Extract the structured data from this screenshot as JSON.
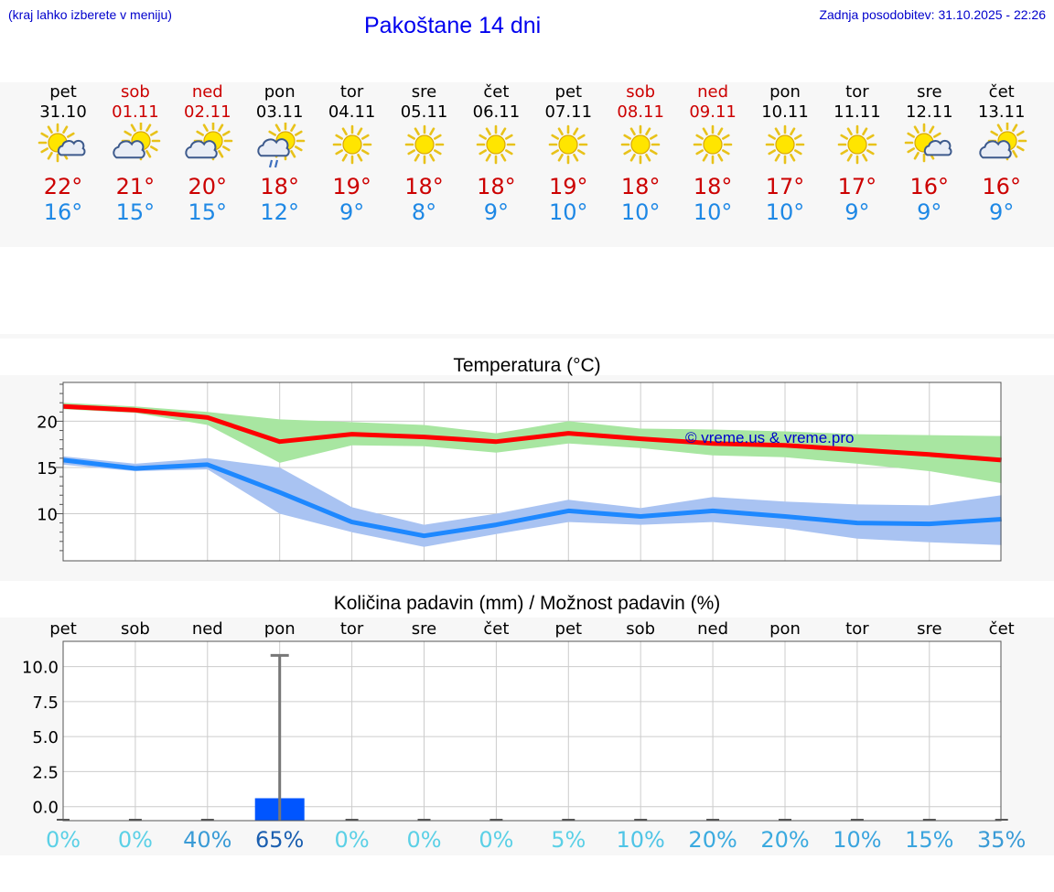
{
  "header": {
    "hint": "(kraj lahko izberete v meniju)",
    "title": "Pakoštane 14 dni",
    "updated": "Zadnja posodobitev: 31.10.2025 - 22:26"
  },
  "days": [
    {
      "name": "pet",
      "date": "31.10",
      "weekend": false,
      "icon": "sun-cloud-icon",
      "tmax": "22°",
      "tmin": "16°"
    },
    {
      "name": "sob",
      "date": "01.11",
      "weekend": true,
      "icon": "cloud-sun-icon",
      "tmax": "21°",
      "tmin": "15°"
    },
    {
      "name": "ned",
      "date": "02.11",
      "weekend": true,
      "icon": "cloud-sun-icon",
      "tmax": "20°",
      "tmin": "15°"
    },
    {
      "name": "pon",
      "date": "03.11",
      "weekend": false,
      "icon": "cloud-sun-rain-icon",
      "tmax": "18°",
      "tmin": "12°"
    },
    {
      "name": "tor",
      "date": "04.11",
      "weekend": false,
      "icon": "sun-icon",
      "tmax": "19°",
      "tmin": "9°"
    },
    {
      "name": "sre",
      "date": "05.11",
      "weekend": false,
      "icon": "sun-icon",
      "tmax": "18°",
      "tmin": "8°"
    },
    {
      "name": "čet",
      "date": "06.11",
      "weekend": false,
      "icon": "sun-icon",
      "tmax": "18°",
      "tmin": "9°"
    },
    {
      "name": "pet",
      "date": "07.11",
      "weekend": false,
      "icon": "sun-icon",
      "tmax": "19°",
      "tmin": "10°"
    },
    {
      "name": "sob",
      "date": "08.11",
      "weekend": true,
      "icon": "sun-icon",
      "tmax": "18°",
      "tmin": "10°"
    },
    {
      "name": "ned",
      "date": "09.11",
      "weekend": true,
      "icon": "sun-icon",
      "tmax": "18°",
      "tmin": "10°"
    },
    {
      "name": "pon",
      "date": "10.11",
      "weekend": false,
      "icon": "sun-icon",
      "tmax": "17°",
      "tmin": "10°"
    },
    {
      "name": "tor",
      "date": "11.11",
      "weekend": false,
      "icon": "sun-icon",
      "tmax": "17°",
      "tmin": "9°"
    },
    {
      "name": "sre",
      "date": "12.11",
      "weekend": false,
      "icon": "sun-cloud-icon",
      "tmax": "16°",
      "tmin": "9°"
    },
    {
      "name": "čet",
      "date": "13.11",
      "weekend": false,
      "icon": "cloud-sun-icon",
      "tmax": "16°",
      "tmin": "9°"
    }
  ],
  "colors": {
    "max": "#ff0000",
    "maxBand": "#a8e6a1",
    "min": "#1e88ff",
    "minBand": "#a9c3f2",
    "bar": "#0055ff",
    "whisker": "#777777",
    "weekend": "#cc0000",
    "watermark": "#0000cc"
  },
  "chart_data": [
    {
      "type": "line",
      "title": "Temperatura (°C)",
      "watermark": "© vreme.us & vreme.pro",
      "ylim": [
        4.9,
        24.2
      ],
      "yticks": [
        10,
        15,
        20
      ],
      "x": [
        "31.10",
        "01.11",
        "02.11",
        "03.11",
        "04.11",
        "05.11",
        "06.11",
        "07.11",
        "08.11",
        "09.11",
        "10.11",
        "11.11",
        "12.11",
        "13.11"
      ],
      "series": [
        {
          "name": "max",
          "values": [
            21.6,
            21.2,
            20.4,
            17.8,
            18.6,
            18.3,
            17.8,
            18.7,
            18.1,
            17.6,
            17.4,
            16.9,
            16.4,
            15.8
          ],
          "band_low": [
            21.3,
            20.9,
            19.6,
            15.5,
            17.4,
            17.3,
            16.6,
            17.6,
            17.1,
            16.3,
            16.1,
            15.4,
            14.6,
            13.3
          ],
          "band_high": [
            22.0,
            21.6,
            21.0,
            20.2,
            19.9,
            19.6,
            18.7,
            20.0,
            19.2,
            19.1,
            18.9,
            18.6,
            18.5,
            18.4
          ]
        },
        {
          "name": "min",
          "values": [
            15.8,
            14.9,
            15.3,
            12.3,
            9.1,
            7.6,
            8.8,
            10.3,
            9.7,
            10.3,
            9.7,
            9.0,
            8.9,
            9.4
          ],
          "band_low": [
            15.3,
            14.6,
            14.8,
            10.0,
            8.0,
            6.4,
            7.8,
            9.1,
            8.8,
            9.1,
            8.4,
            7.3,
            6.9,
            6.6
          ],
          "band_high": [
            16.2,
            15.4,
            16.0,
            15.0,
            10.7,
            8.8,
            10.0,
            11.5,
            10.6,
            11.8,
            11.3,
            11.0,
            10.9,
            12.0
          ]
        }
      ]
    },
    {
      "type": "bar",
      "title": "Količina padavin (mm) / Možnost padavin (%)",
      "ylim": [
        -1.0,
        11.8
      ],
      "yticks": [
        0,
        2.5,
        5,
        7.5,
        10
      ],
      "ytick_labels": [
        "0.0",
        "2.5",
        "5.0",
        "7.5",
        "10.0"
      ],
      "categories": [
        "pet",
        "sob",
        "ned",
        "pon",
        "tor",
        "sre",
        "čet",
        "pet",
        "sob",
        "ned",
        "pon",
        "tor",
        "sre",
        "čet"
      ],
      "values": [
        0,
        0,
        0,
        0.6,
        0,
        0,
        0,
        0,
        0,
        0,
        0,
        0,
        0,
        0
      ],
      "whisker_max": [
        0,
        0,
        0,
        10.8,
        0,
        0,
        0,
        0,
        0,
        0,
        0,
        0,
        0,
        0
      ],
      "probability": [
        "0%",
        "0%",
        "40%",
        "65%",
        "0%",
        "0%",
        "0%",
        "5%",
        "10%",
        "20%",
        "20%",
        "10%",
        "15%",
        "35%"
      ],
      "probability_colors": [
        "#5bd0e6",
        "#5bd0e6",
        "#3a9bd6",
        "#1b5fb0",
        "#5bd0e6",
        "#5bd0e6",
        "#5bd0e6",
        "#5bd0e6",
        "#4ec4e6",
        "#3aaadf",
        "#3aaadf",
        "#3aa4de",
        "#3aa4de",
        "#3a9bd6"
      ]
    }
  ]
}
